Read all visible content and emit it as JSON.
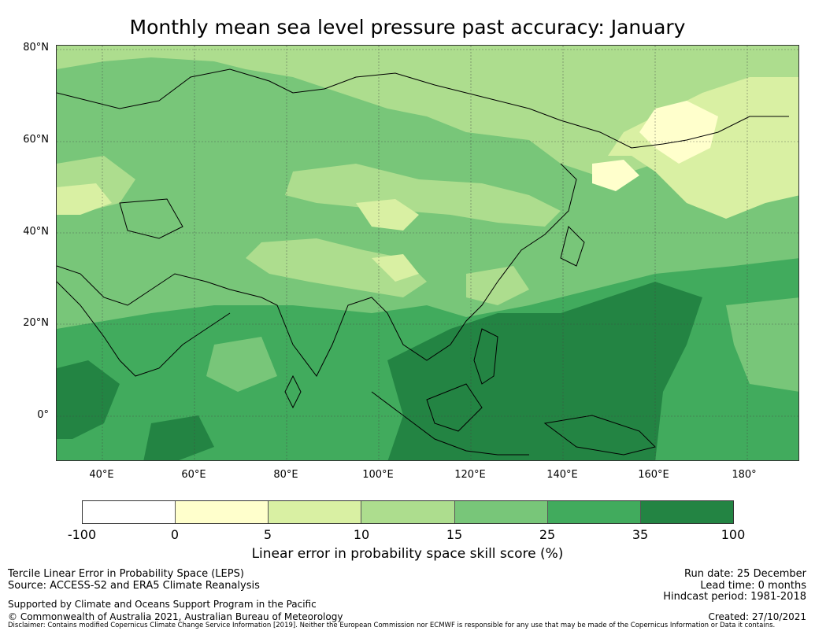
{
  "title": "Monthly mean sea level pressure past accuracy: January",
  "map": {
    "lat_labels": [
      "80°N",
      "60°N",
      "40°N",
      "20°N",
      "0°"
    ],
    "lon_labels": [
      "40°E",
      "60°E",
      "80°E",
      "100°E",
      "120°E",
      "140°E",
      "160°E",
      "180°"
    ],
    "colors": {
      "c1": "#ffffcc",
      "c2": "#d9f0a3",
      "c3": "#addd8e",
      "c4": "#78c679",
      "c5": "#41ab5d",
      "c6": "#238443"
    }
  },
  "colorbar": {
    "label": "Linear error in probability space skill score (%)",
    "ticks": [
      "-100",
      "0",
      "5",
      "10",
      "15",
      "25",
      "35",
      "100"
    ],
    "colors": [
      "#ffffff",
      "#ffffcc",
      "#d9f0a3",
      "#addd8e",
      "#78c679",
      "#41ab5d",
      "#238443"
    ]
  },
  "info": {
    "method": "Tercile Linear Error in Probability Space (LEPS)",
    "source": "Source: ACCESS-S2 and ERA5 Climate Reanalysis",
    "support": "Supported by Climate and Oceans Support Program in the Pacific",
    "copyright": "© Commonwealth of Australia 2021, Australian Bureau of Meteorology",
    "disclaimer": "Disclaimer: Contains modified Copernicus Climate Change Service Information [2019]. Neither the European Commission nor ECMWF is responsible for any use that may be made of the Copernicus Information or Data it contains.",
    "run_date": "Run date: 25 December",
    "lead_time": "Lead time: 0 months",
    "hindcast": "Hindcast period: 1981-2018",
    "created": "Created: 27/10/2021"
  }
}
